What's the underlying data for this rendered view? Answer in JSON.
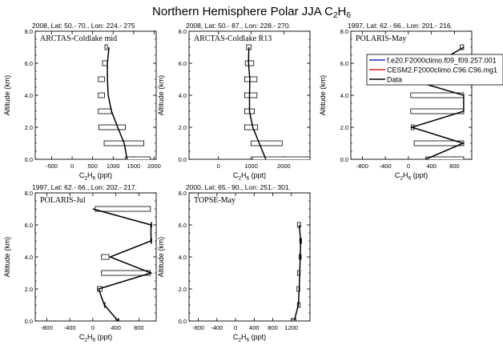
{
  "title": "Northern Hemisphere Polar JJA C2H6",
  "title_parts": {
    "main": "Northern Hemisphere Polar JJA C",
    "sub1": "2",
    "mid": "H",
    "sub2": "6"
  },
  "axis_labels": {
    "ylabel": "Altitude (km)",
    "xlabel_main": "C",
    "xlabel_sub1": "2",
    "xlabel_mid": "H",
    "xlabel_sub2": "6",
    "xlabel_unit": " (ppt)"
  },
  "legend": {
    "entries": [
      {
        "label": "f.e20.F2000climo.f09_f09.257.001",
        "color": "#1f2fbf"
      },
      {
        "label": "CESM2.F2000climo.C96.C96.mg1",
        "color": "#e02020"
      },
      {
        "label": "Data",
        "color": "#000000"
      }
    ]
  },
  "colors": {
    "line": "#000000",
    "background": "#ffffff"
  },
  "chart_data": [
    {
      "type": "line",
      "header": "2008, Lat:  50.- 70., Lon: 224.- 275",
      "campaign": "ARCTAS-Coldlake mid",
      "xlim": [
        -900,
        2050
      ],
      "ylim": [
        0,
        8
      ],
      "xticks": [
        -500,
        0,
        500,
        1000,
        1500,
        2000
      ],
      "xtick_labels": [
        "-500",
        "0",
        "500",
        "1000",
        "1500",
        "2000"
      ],
      "yticks": [
        0,
        2,
        4,
        6,
        8
      ],
      "ytick_labels": [
        "0.0",
        "2.0",
        "4.0",
        "6.0",
        "8.0"
      ],
      "series": [
        {
          "name": "Data",
          "alt": [
            0.0,
            1.0,
            2.0,
            3.0,
            4.0,
            5.0,
            6.0,
            7.0
          ],
          "mean": [
            1340,
            1270,
            1110,
            960,
            880,
            860,
            860,
            900
          ],
          "box_low": [
            1300,
            780,
            650,
            640,
            640,
            640,
            740,
            800
          ],
          "box_high": [
            1900,
            1750,
            1300,
            960,
            790,
            790,
            860,
            860
          ]
        }
      ]
    },
    {
      "type": "line",
      "header": "2008, Lat:  50.- 87., Lon: 228.- 270.",
      "campaign": "ARCTAS-Coldlake R13",
      "xlim": [
        -900,
        2800
      ],
      "ylim": [
        0,
        8
      ],
      "xticks": [
        0,
        1000,
        2000
      ],
      "xtick_labels": [
        "0",
        "1000",
        "2000"
      ],
      "yticks": [
        0,
        2,
        4,
        6,
        8
      ],
      "ytick_labels": [
        "0.0",
        "2.0",
        "4.0",
        "6.0",
        "8.0"
      ],
      "series": [
        {
          "name": "Data",
          "alt": [
            0.0,
            1.0,
            2.0,
            3.0,
            4.0,
            5.0,
            6.0,
            7.0
          ],
          "mean": [
            1450,
            1250,
            1050,
            950,
            950,
            960,
            920,
            930
          ],
          "box_low": [
            1050,
            1000,
            800,
            800,
            800,
            800,
            820,
            860
          ],
          "box_high": [
            2800,
            1950,
            1200,
            1100,
            1180,
            1180,
            1080,
            1000
          ]
        }
      ]
    },
    {
      "type": "line",
      "header": "1997, Lat:  62.- 66., Lon: 201.- 216.",
      "campaign": "POLARIS-May",
      "xlim": [
        -1000,
        1100
      ],
      "ylim": [
        0,
        8
      ],
      "xticks": [
        -800,
        -400,
        0,
        400,
        800
      ],
      "xtick_labels": [
        "-800",
        "-400",
        "0",
        "400",
        "800"
      ],
      "yticks": [
        0,
        2,
        4,
        6,
        8
      ],
      "ytick_labels": [
        "0.0",
        "2.0",
        "4.0",
        "6.0",
        "8.0"
      ],
      "series": [
        {
          "name": "Data",
          "alt": [
            0.0,
            1.0,
            2.0,
            3.0,
            4.0,
            5.0,
            7.0
          ],
          "mean": [
            300,
            950,
            60,
            960,
            960,
            10,
            960
          ],
          "box_low": [
            300,
            100,
            50,
            40,
            40,
            20,
            900
          ],
          "box_high": [
            960,
            960,
            100,
            960,
            960,
            60,
            960
          ]
        }
      ]
    },
    {
      "type": "line",
      "header": "1997, Lat:  62.- 66., Lon: 202.- 217.",
      "campaign": "POLARIS-Jul",
      "xlim": [
        -1000,
        1100
      ],
      "ylim": [
        0,
        8
      ],
      "xticks": [
        -800,
        -400,
        0,
        400,
        800
      ],
      "xtick_labels": [
        "-800",
        "-400",
        "0",
        "400",
        "800"
      ],
      "yticks": [
        0,
        2,
        4,
        6,
        8
      ],
      "ytick_labels": [
        "0.0",
        "2.0",
        "4.0",
        "6.0",
        "8.0"
      ],
      "series": [
        {
          "name": "Data",
          "alt": [
            0.0,
            1.0,
            2.0,
            3.0,
            4.0,
            5.0,
            6.0,
            7.0
          ],
          "mean": [
            440,
            200,
            100,
            1010,
            300,
            1010,
            1010,
            0
          ],
          "box_low": [
            440,
            200,
            80,
            150,
            150,
            1010,
            1010,
            40
          ],
          "box_high": [
            440,
            200,
            160,
            1000,
            280,
            1010,
            1010,
            1000
          ]
        }
      ]
    },
    {
      "type": "line",
      "header": "2000, Lat:  65.- 90., Lon: 251.- 301.",
      "campaign": "TOPSE-May",
      "xlim": [
        -1000,
        1600
      ],
      "ylim": [
        0,
        8
      ],
      "xticks": [
        -800,
        -400,
        0,
        400,
        800,
        1200
      ],
      "xtick_labels": [
        "-800",
        "-400",
        "0",
        "400",
        "800",
        "1200"
      ],
      "yticks": [
        0,
        2,
        4,
        6,
        8
      ],
      "ytick_labels": [
        "0.0",
        "2.0",
        "4.0",
        "6.0",
        "8.0"
      ],
      "series": [
        {
          "name": "Data",
          "alt": [
            0.0,
            1.0,
            2.0,
            3.0,
            4.0,
            5.0,
            6.0
          ],
          "mean": [
            1260,
            1350,
            1370,
            1380,
            1390,
            1400,
            1370
          ],
          "box_low": [
            1220,
            1330,
            1320,
            1330,
            1370,
            1380,
            1330
          ],
          "box_high": [
            1300,
            1390,
            1380,
            1390,
            1410,
            1420,
            1400
          ]
        }
      ]
    }
  ]
}
